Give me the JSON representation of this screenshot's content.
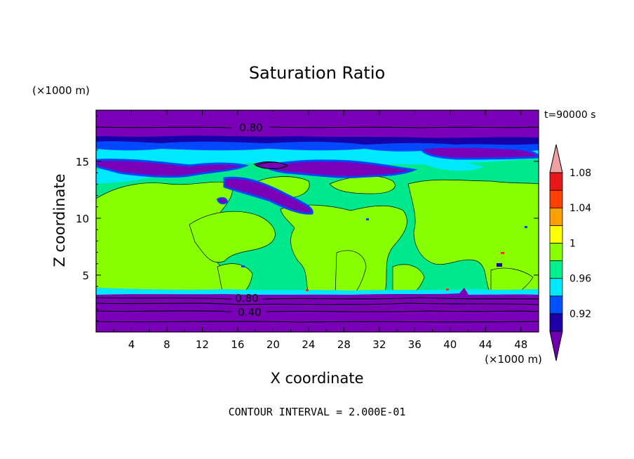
{
  "chart_data": {
    "type": "heatmap",
    "title": "Saturation Ratio",
    "xlabel": "X coordinate",
    "ylabel": "Z coordinate",
    "x_unit": "(×1000 m)",
    "z_unit": "(×1000 m)",
    "time_label": "t=90000 s",
    "footer": "CONTOUR INTERVAL = 2.000E-01",
    "xlim": [
      0,
      50
    ],
    "ylim": [
      0,
      19.5
    ],
    "x_ticks": [
      "4",
      "8",
      "12",
      "16",
      "20",
      "24",
      "28",
      "32",
      "36",
      "40",
      "44",
      "48"
    ],
    "y_ticks": [
      "5",
      "10",
      "15"
    ],
    "contour_labels": [
      "0.80",
      "0.80",
      "0.40"
    ],
    "colorbar": {
      "labels": [
        "1.08",
        "1.04",
        "1",
        "0.96",
        "0.92"
      ],
      "levels": [
        0.92,
        0.94,
        0.96,
        0.98,
        1.0,
        1.02,
        1.04,
        1.06,
        1.08
      ],
      "colors": [
        "#6f00b0",
        "#1f00a8",
        "#0050ff",
        "#00e8ff",
        "#00f090",
        "#88ff00",
        "#ffff00",
        "#ffa000",
        "#ff4000",
        "#e81818",
        "#f0a0a0"
      ]
    },
    "colors": {
      "deep": "#7a00b8",
      "navy": "#1600a8",
      "blue": "#0048ff",
      "cyan": "#00e8ff",
      "teal": "#00e88c",
      "lime": "#88ff00",
      "yellow": "#ffff00",
      "orange": "#ffa000",
      "red": "#ff3010",
      "pink": "#f4a0a0"
    }
  }
}
